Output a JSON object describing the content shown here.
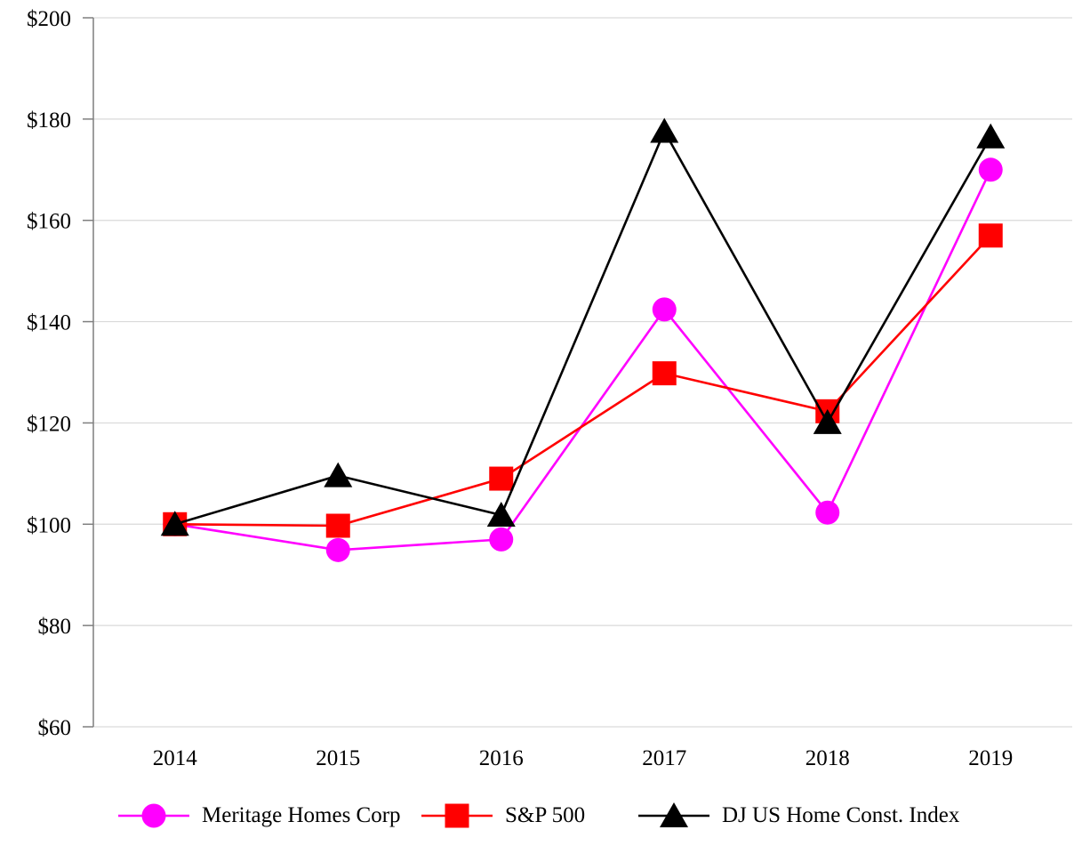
{
  "chart_data": {
    "type": "line",
    "title": "",
    "xlabel": "",
    "ylabel": "",
    "categories": [
      "2014",
      "2015",
      "2016",
      "2017",
      "2018",
      "2019"
    ],
    "series": [
      {
        "name": "Meritage Homes Corp",
        "color": "#FF00FF",
        "marker": "circle",
        "values": [
          100.0,
          94.9,
          97.0,
          142.4,
          102.3,
          170.0
        ]
      },
      {
        "name": "S&P 500",
        "color": "#FF0000",
        "marker": "square",
        "values": [
          100.0,
          99.7,
          109.0,
          129.8,
          122.3,
          157.0
        ]
      },
      {
        "name": "DJ US Home Const. Index",
        "color": "#000000",
        "marker": "triangle",
        "values": [
          100.0,
          109.6,
          101.8,
          177.6,
          120.1,
          176.5
        ]
      }
    ],
    "ylim": [
      60,
      200
    ],
    "ytick_step": 20,
    "ytick_prefix": "$",
    "ytick_labels": [
      "$60",
      "$80",
      "$100",
      "$120",
      "$140",
      "$160",
      "$180",
      "$200"
    ],
    "grid": true,
    "legend_position": "bottom",
    "colors": {
      "axis": "#7F7F7F",
      "gridline": "#D9D9D9",
      "text": "#000000",
      "background": "#FFFFFF"
    }
  }
}
